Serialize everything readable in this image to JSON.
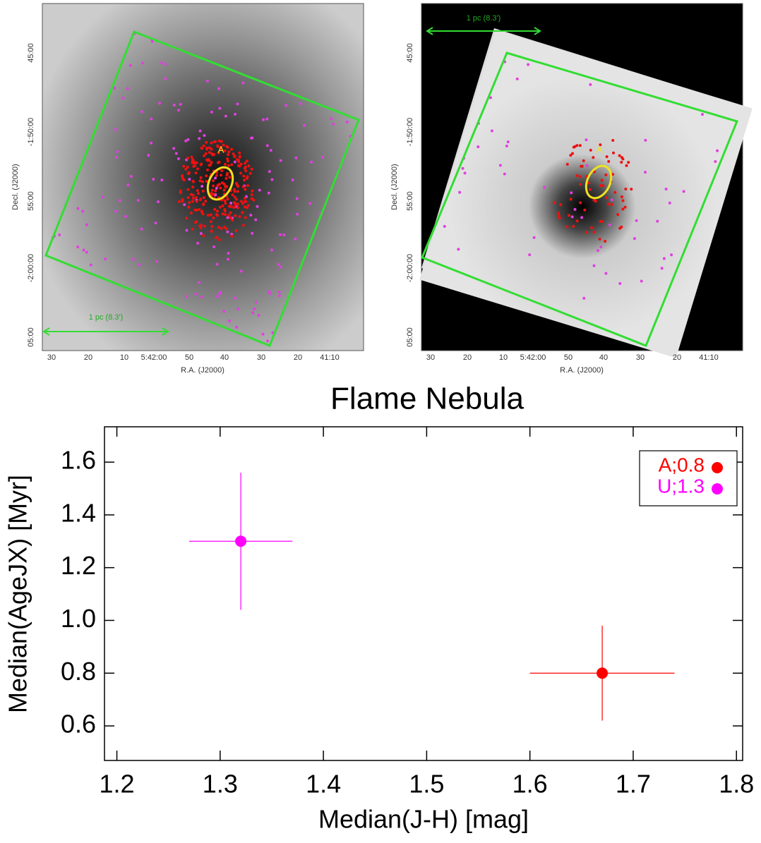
{
  "images": [
    {
      "ra_ticks": [
        "30",
        "20",
        "10",
        "5:42:00",
        "50",
        "40",
        "30",
        "20",
        "41:10"
      ],
      "dec_ticks": [
        "45:00",
        "-1:50:00",
        "55:00",
        "-2:00:00",
        "05:00"
      ],
      "x_label": "R.A. (J2000)",
      "y_label": "Decl. (J2000)",
      "scale_bar": "1 pc (8.3')",
      "region_label": "A"
    },
    {
      "ra_ticks": [
        "30",
        "20",
        "10",
        "5:42:00",
        "50",
        "40",
        "30",
        "20",
        "41:10"
      ],
      "dec_ticks": [
        "45:00",
        "-1:50:00",
        "55:00",
        "-2:00:00",
        "05:00"
      ],
      "x_label": "R.A. (J2000)",
      "y_label": "Decl. (J2000)",
      "scale_bar": "1 pc (8.3')",
      "region_label": "A"
    }
  ],
  "chart_data": {
    "type": "scatter",
    "title": "Flame Nebula",
    "x_label": "Median(J-H) [mag]",
    "y_label": "Median(AgeJX) [Myr]",
    "series": [
      {
        "name": "A;0.8",
        "color": "#ff0000",
        "x": [
          1.67
        ],
        "values": [
          0.8
        ],
        "xerr": [
          0.07
        ],
        "yerr": [
          0.18
        ]
      },
      {
        "name": "U;1.3",
        "color": "#ff00ff",
        "x": [
          1.32
        ],
        "values": [
          1.3
        ],
        "xerr": [
          0.05
        ],
        "yerr": [
          0.26
        ]
      }
    ],
    "xlim": [
      1.188,
      1.806
    ],
    "ylim": [
      0.469,
      1.734
    ],
    "xticks": [
      1.2,
      1.3,
      1.4,
      1.5,
      1.6,
      1.7,
      1.8
    ],
    "yticks": [
      0.6,
      0.8,
      {
        "value": 1,
        "label": "1.0"
      },
      1.2,
      1.4,
      1.6
    ],
    "legend": "upper right"
  }
}
